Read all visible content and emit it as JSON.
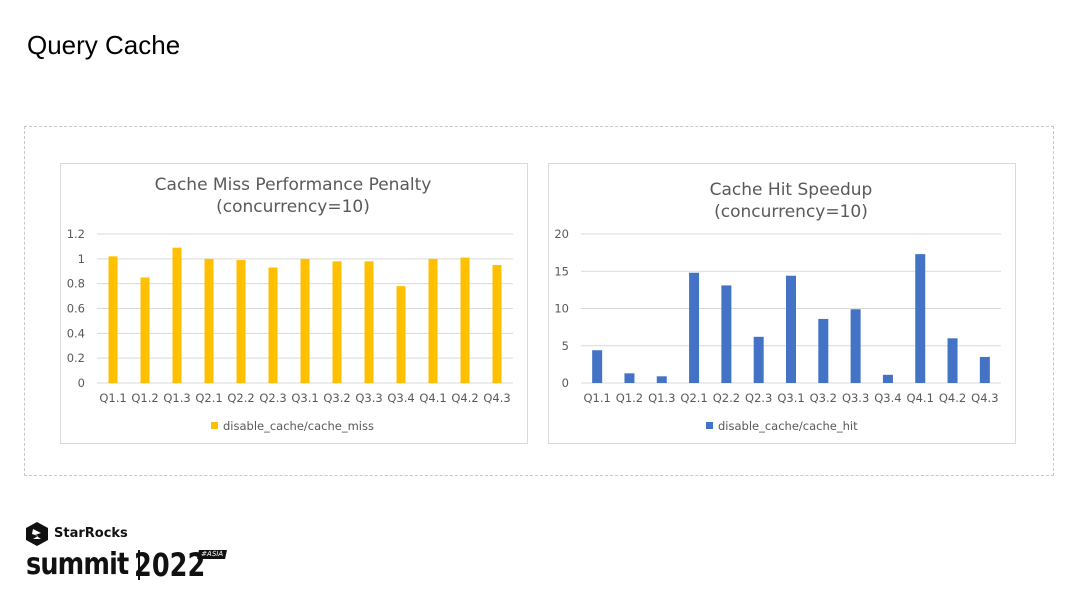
{
  "slide": {
    "title": "Query Cache"
  },
  "colors": {
    "miss_series": "#FFC000",
    "hit_series": "#4472C4",
    "grid": "#d9d9d9",
    "text": "#595959"
  },
  "chart_data": [
    {
      "type": "bar",
      "title_lines": [
        "Cache Miss Performance Penalty",
        "(concurrency=10)"
      ],
      "categories": [
        "Q1.1",
        "Q1.2",
        "Q1.3",
        "Q2.1",
        "Q2.2",
        "Q2.3",
        "Q3.1",
        "Q3.2",
        "Q3.3",
        "Q3.4",
        "Q4.1",
        "Q4.2",
        "Q4.3"
      ],
      "series": [
        {
          "name": "disable_cache/cache_miss",
          "color": "#FFC000",
          "values": [
            1.02,
            0.85,
            1.09,
            1.0,
            0.99,
            0.93,
            1.0,
            0.98,
            0.98,
            0.78,
            1.0,
            1.01,
            0.95
          ]
        }
      ],
      "ylim": [
        0,
        1.2
      ],
      "yticks": [
        "0",
        "0.2",
        "0.4",
        "0.6",
        "0.8",
        "1",
        "1.2"
      ],
      "ytick_values": [
        0,
        0.2,
        0.4,
        0.6,
        0.8,
        1,
        1.2
      ],
      "grid": true,
      "legend_position": "bottom"
    },
    {
      "type": "bar",
      "title_lines": [
        "Cache Hit Speedup",
        "(concurrency=10)"
      ],
      "categories": [
        "Q1.1",
        "Q1.2",
        "Q1.3",
        "Q2.1",
        "Q2.2",
        "Q2.3",
        "Q3.1",
        "Q3.2",
        "Q3.3",
        "Q3.4",
        "Q4.1",
        "Q4.2",
        "Q4.3"
      ],
      "series": [
        {
          "name": "disable_cache/cache_hit",
          "color": "#4472C4",
          "values": [
            4.4,
            1.3,
            0.9,
            14.8,
            13.1,
            6.2,
            14.4,
            8.6,
            9.9,
            1.1,
            17.3,
            6.0,
            3.5
          ]
        }
      ],
      "ylim": [
        0,
        20
      ],
      "yticks": [
        "0",
        "5",
        "10",
        "15",
        "20"
      ],
      "ytick_values": [
        0,
        5,
        10,
        15,
        20
      ],
      "grid": true,
      "legend_position": "bottom"
    }
  ],
  "footer": {
    "brand": "StarRocks",
    "summit_word": "summit",
    "year": "2022",
    "region_tag": "#ASIA"
  }
}
